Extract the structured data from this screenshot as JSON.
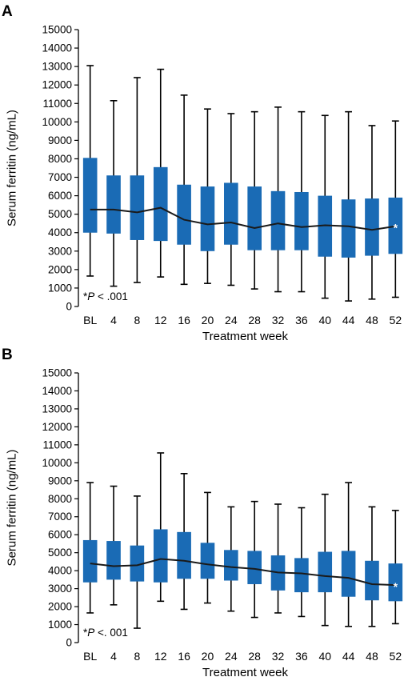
{
  "chart_data": [
    {
      "panel_label": "A",
      "type": "box",
      "xlabel": "Treatment week",
      "ylabel": "Serum ferritin (ng/mL)",
      "ylim": [
        0,
        15000
      ],
      "yticks": [
        0,
        1000,
        2000,
        3000,
        4000,
        5000,
        6000,
        7000,
        8000,
        9000,
        10000,
        11000,
        12000,
        13000,
        14000,
        15000
      ],
      "categories": [
        "BL",
        "4",
        "8",
        "12",
        "16",
        "20",
        "24",
        "28",
        "32",
        "36",
        "40",
        "44",
        "48",
        "52"
      ],
      "whisker_low": [
        1650,
        1100,
        1300,
        1600,
        1200,
        1250,
        1150,
        950,
        800,
        800,
        450,
        300,
        400,
        500
      ],
      "q1": [
        4000,
        3950,
        3600,
        3550,
        3350,
        3000,
        3350,
        3050,
        3050,
        3050,
        2700,
        2650,
        2750,
        2850
      ],
      "q3": [
        8050,
        7100,
        7100,
        7550,
        6600,
        6500,
        6700,
        6500,
        6250,
        6200,
        6000,
        5800,
        5850,
        5900
      ],
      "whisker_high": [
        13050,
        11150,
        12400,
        12850,
        11450,
        10700,
        10450,
        10550,
        10800,
        10550,
        10350,
        10550,
        9800,
        10050
      ],
      "median_line": [
        5250,
        5250,
        5100,
        5350,
        4700,
        4450,
        4550,
        4250,
        4500,
        4300,
        4400,
        4350,
        4150,
        4350
      ],
      "significance_marker": {
        "category": "52",
        "symbol": "*"
      },
      "annotation": {
        "prefix": "*",
        "italic": "P",
        "rest": " < .001"
      }
    },
    {
      "panel_label": "B",
      "type": "box",
      "xlabel": "Treatment week",
      "ylabel": "Serum ferritin (ng/mL)",
      "ylim": [
        0,
        15000
      ],
      "yticks": [
        0,
        1000,
        2000,
        3000,
        4000,
        5000,
        6000,
        7000,
        8000,
        9000,
        10000,
        11000,
        12000,
        13000,
        14000,
        15000
      ],
      "categories": [
        "BL",
        "4",
        "8",
        "12",
        "16",
        "20",
        "24",
        "28",
        "32",
        "36",
        "40",
        "44",
        "48",
        "52"
      ],
      "whisker_low": [
        1650,
        2100,
        800,
        2300,
        1850,
        2200,
        1750,
        1400,
        1650,
        1450,
        950,
        900,
        900,
        1050
      ],
      "q1": [
        3350,
        3500,
        3400,
        3350,
        3550,
        3550,
        3450,
        3250,
        2900,
        2800,
        2800,
        2550,
        2350,
        2300
      ],
      "q3": [
        5700,
        5650,
        5400,
        6300,
        6150,
        5550,
        5150,
        5100,
        4850,
        4700,
        5050,
        5100,
        4550,
        4400
      ],
      "whisker_high": [
        8900,
        8700,
        8150,
        10550,
        9400,
        8350,
        7550,
        7850,
        7700,
        7500,
        8250,
        8900,
        7550,
        7350
      ],
      "median_line": [
        4400,
        4250,
        4300,
        4650,
        4550,
        4350,
        4200,
        4100,
        3900,
        3850,
        3700,
        3600,
        3250,
        3200
      ],
      "significance_marker": {
        "category": "52",
        "symbol": "*"
      },
      "annotation": {
        "prefix": "*",
        "italic": "P",
        "rest": " <. 001"
      }
    }
  ],
  "colors": {
    "box": "#1a6bb5",
    "line": "#1a1a1a",
    "axis": "#000000",
    "marker": "#ffffff"
  }
}
